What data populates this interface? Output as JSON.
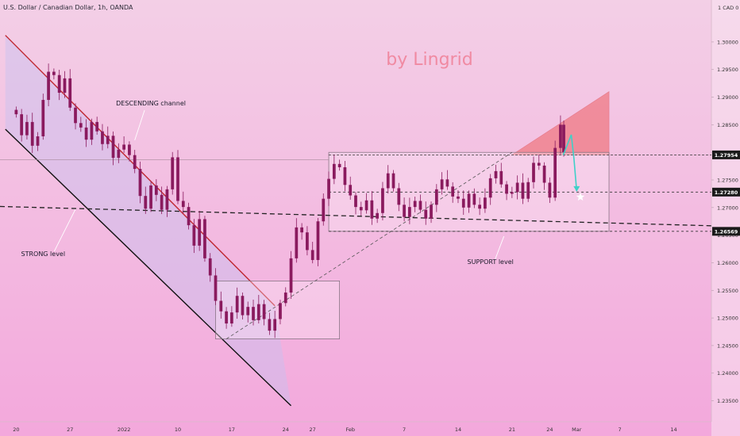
{
  "header": {
    "symbol": "U.S. Dollar / Canadian Dollar, 1h, OANDA"
  },
  "watermark": "by Lingrid",
  "colors": {
    "bg_top": "#f3cfe6",
    "bg_bottom": "#f3a8dc",
    "candle": "#8a1a5e",
    "channel_upper": "#c0262f",
    "channel_lower": "#111111",
    "channel_fill": "#c8c0f0",
    "triangle": "#f07a84",
    "watermark": "#f08aa2",
    "arrow": "#3fd0c8",
    "price_tag": "#1a1a1a"
  },
  "chart_data": {
    "type": "candlestick",
    "symbol": "U.S. Dollar / Canadian Dollar",
    "timeframe": "1h",
    "ylim": [
      1.2312,
      1.3076
    ],
    "yticks": [
      1.235,
      1.24,
      1.245,
      1.25,
      1.255,
      1.26,
      1.265,
      1.27,
      1.275,
      1.28,
      1.285,
      1.29,
      1.295,
      1.3
    ],
    "ytick_labels": [
      "1.23500",
      "1.24000",
      "1.24500",
      "1.25000",
      "1.25500",
      "1.26000",
      "1.26500",
      "1.27000",
      "1.27500",
      "1.28000",
      "1.28500",
      "1.29000",
      "1.29500",
      "1.30000"
    ],
    "axis_unit": "CAD",
    "xlim": [
      -3,
      129
    ],
    "xticks": [
      {
        "x": 0,
        "label": "20"
      },
      {
        "x": 10,
        "label": "27"
      },
      {
        "x": 20,
        "label": "2022"
      },
      {
        "x": 30,
        "label": "10"
      },
      {
        "x": 40,
        "label": "17"
      },
      {
        "x": 50,
        "label": "24"
      },
      {
        "x": 55,
        "label": "27"
      },
      {
        "x": 62,
        "label": "Feb"
      },
      {
        "x": 72,
        "label": "7"
      },
      {
        "x": 82,
        "label": "14"
      },
      {
        "x": 92,
        "label": "21"
      },
      {
        "x": 99,
        "label": "24"
      },
      {
        "x": 104,
        "label": "Mar"
      },
      {
        "x": 112,
        "label": "7"
      },
      {
        "x": 122,
        "label": "14"
      }
    ],
    "price_tags": [
      1.27954,
      1.2728,
      1.26569
    ],
    "levels": [
      {
        "name": "STRONG level",
        "style": "dashed",
        "points": [
          [
            -3,
            1.2702
          ],
          [
            129,
            1.2667
          ]
        ]
      }
    ],
    "ranges": [
      {
        "x": [
          37,
          60
        ],
        "y": [
          1.2462,
          1.2567
        ]
      },
      {
        "x": [
          58,
          110
        ],
        "y": [
          1.26569,
          1.28
        ]
      }
    ],
    "channel": {
      "upper": [
        [
          -2,
          1.3012
        ],
        [
          48,
          1.2522
        ]
      ],
      "lower": [
        [
          -2,
          1.2842
        ],
        [
          51,
          1.2341
        ]
      ]
    },
    "trendline": [
      [
        39,
        1.2462
      ],
      [
        92,
        1.28
      ]
    ],
    "triangle": [
      [
        92,
        1.27954
      ],
      [
        110,
        1.291
      ],
      [
        110,
        1.27954
      ]
    ],
    "projection": {
      "path": [
        [
          101.5,
          1.2795
        ],
        [
          103,
          1.2832
        ],
        [
          103.5,
          1.2788
        ],
        [
          104,
          1.273
        ]
      ],
      "target": [
        104.7,
        1.2719
      ]
    },
    "annotations": [
      {
        "text": "DESCENDING channel",
        "at": [
          25,
          1.2885
        ],
        "arrow_to": [
          22,
          1.2822
        ]
      },
      {
        "text": "STRONG level",
        "at": [
          5,
          1.2612
        ],
        "arrow_to": [
          11,
          1.2697
        ]
      },
      {
        "text": "SUPPORT level",
        "at": [
          88,
          1.2598
        ],
        "arrow_to": [
          90.5,
          1.2648
        ]
      }
    ],
    "series": [
      {
        "type": "candlestick",
        "points": [
          [
            0,
            1.2869
          ],
          [
            1,
            1.2831
          ],
          [
            2,
            1.2855
          ],
          [
            3,
            1.2812
          ],
          [
            4,
            1.2829
          ],
          [
            5,
            1.2895
          ],
          [
            6,
            1.2946
          ],
          [
            7,
            1.294
          ],
          [
            8,
            1.2908
          ],
          [
            9,
            1.2934
          ],
          [
            10,
            1.2881
          ],
          [
            11,
            1.2853
          ],
          [
            12,
            1.2845
          ],
          [
            13,
            1.2823
          ],
          [
            14,
            1.2855
          ],
          [
            15,
            1.2838
          ],
          [
            16,
            1.2815
          ],
          [
            17,
            1.283
          ],
          [
            18,
            1.279
          ],
          [
            19,
            1.2805
          ],
          [
            20,
            1.2814
          ],
          [
            21,
            1.2795
          ],
          [
            22,
            1.277
          ],
          [
            23,
            1.2721
          ],
          [
            24,
            1.2698
          ],
          [
            25,
            1.274
          ],
          [
            26,
            1.2723
          ],
          [
            27,
            1.2696
          ],
          [
            28,
            1.2733
          ],
          [
            29,
            1.2791
          ],
          [
            30,
            1.2712
          ],
          [
            31,
            1.2701
          ],
          [
            32,
            1.2668
          ],
          [
            33,
            1.2631
          ],
          [
            34,
            1.2679
          ],
          [
            35,
            1.2608
          ],
          [
            36,
            1.2577
          ],
          [
            37,
            1.2531
          ],
          [
            38,
            1.2512
          ],
          [
            39,
            1.249
          ],
          [
            40,
            1.251
          ],
          [
            41,
            1.254
          ],
          [
            42,
            1.2505
          ],
          [
            43,
            1.252
          ],
          [
            44,
            1.2496
          ],
          [
            45,
            1.2525
          ],
          [
            46,
            1.2498
          ],
          [
            47,
            1.2477
          ],
          [
            48,
            1.2498
          ],
          [
            49,
            1.2527
          ],
          [
            50,
            1.2546
          ],
          [
            51,
            1.2608
          ],
          [
            52,
            1.2664
          ],
          [
            53,
            1.2655
          ],
          [
            54,
            1.2623
          ],
          [
            55,
            1.2605
          ],
          [
            56,
            1.2675
          ],
          [
            57,
            1.2716
          ],
          [
            58,
            1.2752
          ],
          [
            59,
            1.2779
          ],
          [
            60,
            1.2773
          ],
          [
            61,
            1.2741
          ],
          [
            62,
            1.2722
          ],
          [
            63,
            1.2701
          ],
          [
            64,
            1.2695
          ],
          [
            65,
            1.2713
          ],
          [
            66,
            1.268
          ],
          [
            67,
            1.269
          ],
          [
            68,
            1.2735
          ],
          [
            69,
            1.2762
          ],
          [
            70,
            1.2735
          ],
          [
            71,
            1.2705
          ],
          [
            72,
            1.2683
          ],
          [
            73,
            1.2701
          ],
          [
            74,
            1.2712
          ],
          [
            75,
            1.2696
          ],
          [
            76,
            1.268
          ],
          [
            77,
            1.2705
          ],
          [
            78,
            1.2733
          ],
          [
            79,
            1.2751
          ],
          [
            80,
            1.2738
          ],
          [
            81,
            1.272
          ],
          [
            82,
            1.2716
          ],
          [
            83,
            1.27
          ],
          [
            84,
            1.2725
          ],
          [
            85,
            1.2705
          ],
          [
            86,
            1.2698
          ],
          [
            87,
            1.2718
          ],
          [
            88,
            1.2753
          ],
          [
            89,
            1.2766
          ],
          [
            90,
            1.2742
          ],
          [
            91,
            1.2725
          ],
          [
            92,
            1.2728
          ],
          [
            93,
            1.2745
          ],
          [
            94,
            1.2716
          ],
          [
            95,
            1.2746
          ],
          [
            96,
            1.2781
          ],
          [
            97,
            1.2776
          ],
          [
            98,
            1.2745
          ],
          [
            99,
            1.2718
          ],
          [
            100,
            1.2808
          ],
          [
            101,
            1.285
          ],
          [
            101.6,
            1.28
          ]
        ]
      }
    ]
  }
}
